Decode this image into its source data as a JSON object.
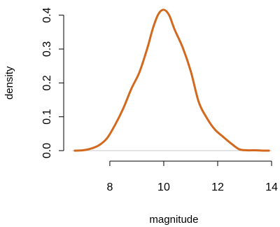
{
  "chart_data": {
    "type": "line",
    "title": "",
    "xlabel": "magnitude",
    "ylabel": "density",
    "xlim": [
      6.6,
      14.0
    ],
    "ylim": [
      0.0,
      0.42
    ],
    "x_ticks": [
      8,
      10,
      12,
      14
    ],
    "x_tick_labels": [
      "8",
      "10",
      "12",
      "14"
    ],
    "y_ticks": [
      0.0,
      0.1,
      0.2,
      0.3,
      0.4
    ],
    "y_tick_labels": [
      "0.0",
      "0.1",
      "0.2",
      "0.3",
      "0.4"
    ],
    "reference_line_y": 0,
    "grid": false,
    "series": [
      {
        "color": "#d2691e",
        "x": [
          6.7,
          7.0,
          7.3,
          7.6,
          7.9,
          8.2,
          8.5,
          8.8,
          9.1,
          9.4,
          9.6,
          9.8,
          10.0,
          10.2,
          10.4,
          10.7,
          11.0,
          11.3,
          11.6,
          11.9,
          12.2,
          12.5,
          12.8,
          13.1,
          13.4,
          13.7,
          13.9
        ],
        "y": [
          0.0,
          0.001,
          0.006,
          0.016,
          0.037,
          0.077,
          0.125,
          0.183,
          0.232,
          0.305,
          0.362,
          0.403,
          0.416,
          0.4,
          0.358,
          0.305,
          0.235,
          0.143,
          0.096,
          0.062,
          0.041,
          0.021,
          0.004,
          0.001,
          0.001,
          0.0,
          0.0
        ]
      }
    ]
  }
}
